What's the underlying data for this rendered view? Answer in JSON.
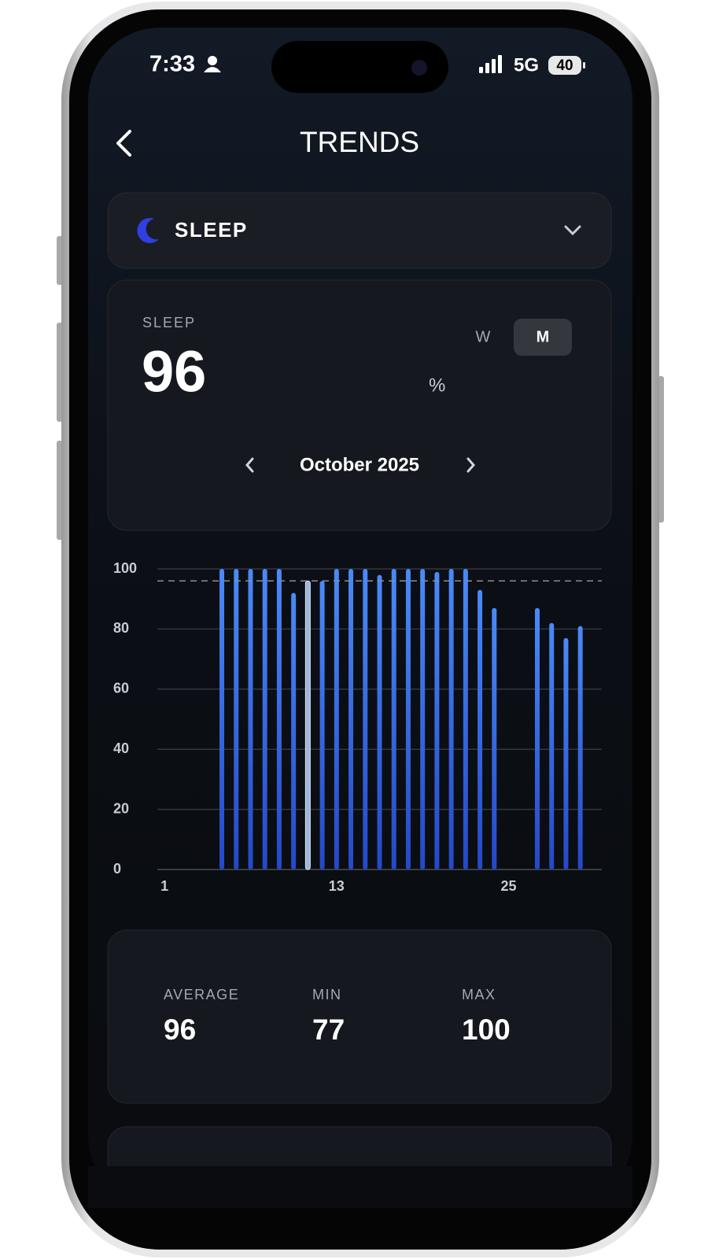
{
  "status_bar": {
    "time": "7:33",
    "network": "5G",
    "battery": "40"
  },
  "header": {
    "title": "TRENDS"
  },
  "metric_selector": {
    "label": "SLEEP"
  },
  "summary": {
    "label": "SLEEP",
    "value": "96",
    "unit": "%",
    "periods": [
      "W",
      "M"
    ],
    "active_period": 1,
    "month": "October 2025"
  },
  "chart_data": {
    "type": "bar",
    "x": [
      5,
      6,
      7,
      8,
      9,
      10,
      11,
      12,
      13,
      14,
      15,
      16,
      17,
      18,
      19,
      20,
      21,
      22,
      23,
      24,
      27,
      28,
      29,
      30
    ],
    "values": [
      100,
      100,
      100,
      100,
      100,
      92,
      96,
      96,
      100,
      100,
      100,
      98,
      100,
      100,
      100,
      99,
      100,
      100,
      93,
      87,
      87,
      82,
      77,
      81
    ],
    "xlim": [
      0.5,
      31.5
    ],
    "xticks": [
      1,
      13,
      25
    ],
    "ylim": [
      0,
      100
    ],
    "yticks": [
      0,
      20,
      40,
      60,
      80,
      100
    ],
    "grid": true,
    "color": "#3d7ef5",
    "selected": 6,
    "selected_color": "#9cb6dc"
  },
  "stats": [
    {
      "label": "AVERAGE",
      "value": 96
    },
    {
      "label": "MIN",
      "value": 77
    },
    {
      "label": "MAX",
      "value": 100
    }
  ]
}
